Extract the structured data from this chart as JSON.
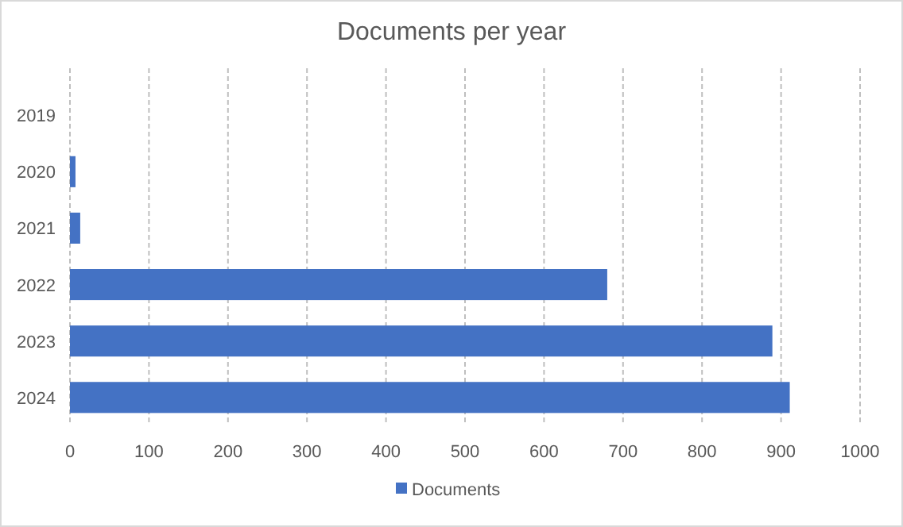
{
  "chart_data": {
    "type": "bar",
    "orientation": "horizontal",
    "title": "Documents per year",
    "categories": [
      "2019",
      "2020",
      "2021",
      "2022",
      "2023",
      "2024"
    ],
    "series": [
      {
        "name": "Documents",
        "color": "#4472c4",
        "values": [
          0,
          7,
          13,
          680,
          889,
          911
        ]
      }
    ],
    "xlim": [
      0,
      1000
    ],
    "xticks": [
      0,
      100,
      200,
      300,
      400,
      500,
      600,
      700,
      800,
      900,
      1000
    ],
    "grid": "x",
    "legend": "bottom"
  }
}
